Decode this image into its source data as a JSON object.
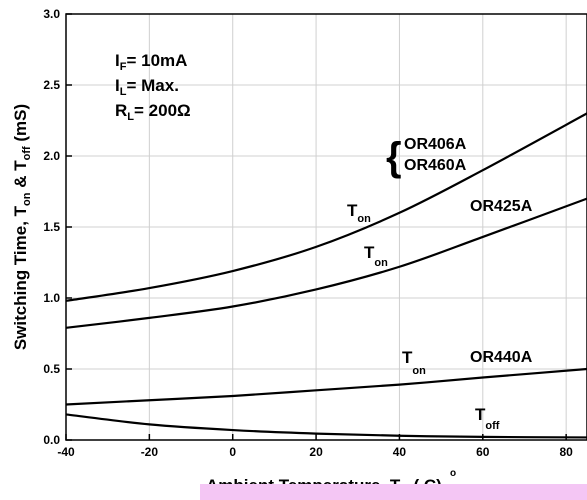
{
  "chart_data": {
    "type": "line",
    "title": "",
    "xlabel": "Ambient Temperature, T",
    "xlabel_sub": "A",
    "xlabel_unit": "( C)",
    "xlabel_degree": "o",
    "ylabel": "Switching Time, T",
    "ylabel_sub_on": "on",
    "ylabel_mid": " & T",
    "ylabel_sub_off": "off",
    "ylabel_unit": " (mS)",
    "xlim": [
      -40,
      85
    ],
    "ylim": [
      0.0,
      3.0
    ],
    "xticks": [
      -40,
      -20,
      0,
      20,
      40,
      60,
      80
    ],
    "xtick_labels": [
      "-40",
      "-20",
      "0",
      "20",
      "40",
      "60",
      "80"
    ],
    "yticks": [
      0.0,
      0.5,
      1.0,
      1.5,
      2.0,
      2.5,
      3.0
    ],
    "ytick_labels": [
      "0.0",
      "0.5",
      "1.0",
      "1.5",
      "2.0",
      "2.5",
      "3.0"
    ],
    "grid": true,
    "conditions": [
      {
        "main": "I",
        "sub": "F",
        "rest": "= 10mA"
      },
      {
        "main": "I",
        "sub": "L",
        "rest": "= Max."
      },
      {
        "main": "R",
        "sub": "L",
        "rest": "= 200Ω"
      }
    ],
    "series": [
      {
        "x": [
          -40,
          -20,
          0,
          20,
          40,
          60,
          85
        ],
        "y": [
          0.98,
          1.07,
          1.19,
          1.36,
          1.6,
          1.9,
          2.3
        ]
      },
      {
        "x": [
          -40,
          -20,
          0,
          20,
          40,
          60,
          85
        ],
        "y": [
          0.79,
          0.86,
          0.94,
          1.06,
          1.22,
          1.43,
          1.7
        ]
      },
      {
        "x": [
          -40,
          -20,
          0,
          20,
          40,
          60,
          85
        ],
        "y": [
          0.25,
          0.28,
          0.31,
          0.35,
          0.39,
          0.44,
          0.5
        ]
      },
      {
        "x": [
          -40,
          -20,
          0,
          20,
          40,
          60,
          85
        ],
        "y": [
          0.18,
          0.11,
          0.07,
          0.045,
          0.03,
          0.022,
          0.018
        ]
      }
    ],
    "annotations": {
      "brace": "{",
      "or406a": "OR406A",
      "or460a": "OR460A",
      "or425a": "OR425A",
      "or440a": "OR440A",
      "t_main": "T",
      "sub_on": "on",
      "sub_off": "off"
    }
  }
}
